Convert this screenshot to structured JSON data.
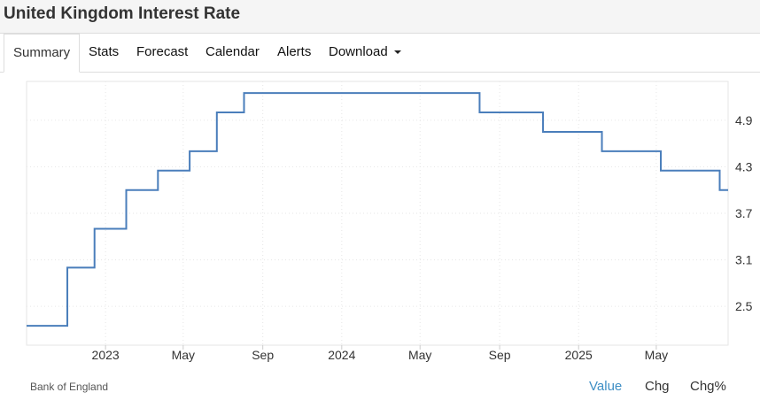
{
  "header": {
    "title": "United Kingdom Interest Rate"
  },
  "tabs": [
    {
      "label": "Summary"
    },
    {
      "label": "Stats"
    },
    {
      "label": "Forecast"
    },
    {
      "label": "Calendar"
    },
    {
      "label": "Alerts"
    },
    {
      "label": "Download"
    }
  ],
  "footer": {
    "source": "Bank of England",
    "buttons": [
      {
        "label": "Value"
      },
      {
        "label": "Chg"
      },
      {
        "label": "Chg%"
      }
    ]
  },
  "colors": {
    "line": "#4a7ebb",
    "active_button": "#3f8fc5"
  },
  "chart_data": {
    "type": "line",
    "step": true,
    "grid": true,
    "ylim": [
      2.0,
      5.4
    ],
    "x_tick_labels": [
      "2023",
      "May",
      "Sep",
      "2024",
      "May",
      "Sep",
      "2025",
      "May"
    ],
    "x_tick_dates": [
      "2023-01-01",
      "2023-05-01",
      "2023-09-01",
      "2024-01-01",
      "2024-05-01",
      "2024-09-01",
      "2025-01-01",
      "2025-05-01"
    ],
    "y_ticks": [
      2.5,
      3.1,
      3.7,
      4.3,
      4.9
    ],
    "y_tick_labels": [
      "2.5",
      "3.1",
      "3.7",
      "4.3",
      "4.9"
    ],
    "series": [
      {
        "x": [
          "2022-09-01",
          "2022-11-03",
          "2022-12-15",
          "2023-02-02",
          "2023-03-23",
          "2023-05-11",
          "2023-06-22",
          "2023-08-03",
          "2024-08-01",
          "2024-11-07",
          "2025-02-06",
          "2025-05-08",
          "2025-08-07"
        ],
        "values": [
          2.25,
          3.0,
          3.5,
          4.0,
          4.25,
          4.5,
          5.0,
          5.25,
          5.0,
          4.75,
          4.5,
          4.25,
          4.0
        ]
      }
    ]
  }
}
